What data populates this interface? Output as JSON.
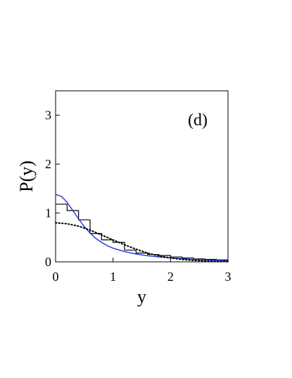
{
  "chart_data": {
    "type": "line",
    "title": "",
    "panel_label": "(d)",
    "xlabel": "y",
    "ylabel": "P(y)",
    "xlim": [
      0,
      3
    ],
    "ylim": [
      0,
      3.5
    ],
    "x_ticks": [
      0,
      1,
      2,
      3
    ],
    "y_ticks": [
      0,
      1,
      2,
      3
    ],
    "grid": false,
    "histogram": {
      "bin_width": 0.2,
      "bin_edges": [
        0,
        0.2,
        0.4,
        0.6,
        0.8,
        1.0,
        1.2,
        1.4,
        1.6,
        1.8,
        2.0,
        2.2,
        2.4,
        2.6,
        2.8,
        3.0
      ],
      "values": [
        1.18,
        1.05,
        0.86,
        0.58,
        0.45,
        0.4,
        0.24,
        0.18,
        0.15,
        0.13,
        0.1,
        0.08,
        0.06,
        0.05,
        0.04
      ],
      "color": "#000000"
    },
    "series": [
      {
        "style": "solid",
        "color": "#2233dd",
        "x": [
          0,
          0.1,
          0.2,
          0.3,
          0.4,
          0.5,
          0.6,
          0.7,
          0.8,
          0.9,
          1.0,
          1.2,
          1.4,
          1.6,
          1.8,
          2.0,
          2.2,
          2.4,
          2.6,
          2.8,
          3.0
        ],
        "y": [
          1.38,
          1.34,
          1.22,
          1.05,
          0.88,
          0.72,
          0.59,
          0.48,
          0.4,
          0.33,
          0.28,
          0.21,
          0.16,
          0.125,
          0.1,
          0.08,
          0.065,
          0.05,
          0.04,
          0.03,
          0.025
        ]
      },
      {
        "style": "dotted",
        "color": "#000000",
        "x": [
          0,
          0.2,
          0.4,
          0.6,
          0.8,
          1.0,
          1.2,
          1.4,
          1.6,
          1.8,
          2.0,
          2.2,
          2.4,
          2.6,
          2.8,
          3.0
        ],
        "y": [
          0.8,
          0.78,
          0.73,
          0.65,
          0.55,
          0.45,
          0.35,
          0.26,
          0.18,
          0.12,
          0.08,
          0.05,
          0.03,
          0.02,
          0.01,
          0.005
        ]
      }
    ]
  }
}
